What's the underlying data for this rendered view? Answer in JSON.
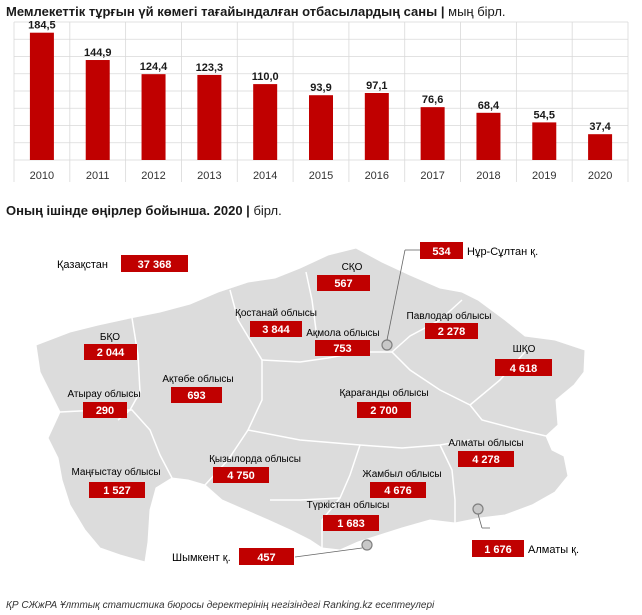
{
  "title1": {
    "main": "Мемлекеттік тұрғын үй көмегі тағайындалған отбасылардың саны",
    "sep": " | ",
    "unit": "мың бірл."
  },
  "title2": {
    "main": "Оның ішінде өңірлер бойынша. 2020",
    "sep": " | ",
    "unit": "бірл."
  },
  "colors": {
    "bar": "#c00000",
    "grid": "#d9d9d9",
    "map_fill": "#dcdcdc",
    "map_border": "#ffffff",
    "badge": "#c00000",
    "badge_text": "#ffffff"
  },
  "chart_data": [
    {
      "type": "bar",
      "title": "Мемлекеттік тұрғын үй көмегі тағайындалған отбасылардың саны",
      "unit": "мың бірл.",
      "categories": [
        "2010",
        "2011",
        "2012",
        "2013",
        "2014",
        "2015",
        "2016",
        "2017",
        "2018",
        "2019",
        "2020"
      ],
      "values": [
        184.5,
        144.9,
        124.4,
        123.3,
        110.0,
        93.9,
        97.1,
        76.6,
        68.4,
        54.5,
        37.4
      ],
      "labels": [
        "184,5",
        "144,9",
        "124,4",
        "123,3",
        "110,0",
        "93,9",
        "97,1",
        "76,6",
        "68,4",
        "54,5",
        "37,4"
      ],
      "ylim": [
        0,
        200
      ],
      "grid": true
    },
    {
      "type": "table",
      "title": "Оның ішінде өңірлер бойынша. 2020",
      "unit": "бірл.",
      "regions": [
        {
          "name": "Қазақстан",
          "value": "37 368"
        },
        {
          "name": "СҚО",
          "value": "567"
        },
        {
          "name": "Нұр-Сұлтан қ.",
          "value": "534"
        },
        {
          "name": "Қостанай облысы",
          "value": "3 844"
        },
        {
          "name": "Ақмола облысы",
          "value": "753"
        },
        {
          "name": "Павлодар облысы",
          "value": "2 278"
        },
        {
          "name": "БҚО",
          "value": "2 044"
        },
        {
          "name": "ШҚО",
          "value": "4 618"
        },
        {
          "name": "Ақтөбе облысы",
          "value": "693"
        },
        {
          "name": "Атырау облысы",
          "value": "290"
        },
        {
          "name": "Қарағанды облысы",
          "value": "2 700"
        },
        {
          "name": "Алматы облысы",
          "value": "4 278"
        },
        {
          "name": "Маңғыстау облысы",
          "value": "1 527"
        },
        {
          "name": "Қызылорда облысы",
          "value": "4 750"
        },
        {
          "name": "Жамбыл облысы",
          "value": "4 676"
        },
        {
          "name": "Түркістан облысы",
          "value": "1 683"
        },
        {
          "name": "Шымкент қ.",
          "value": "457"
        },
        {
          "name": "Алматы қ.",
          "value": "1 676"
        }
      ]
    }
  ],
  "footer": "ҚР СЖжРА Ұлттық статистика бюросы  деректерінің негізіндегі Ranking.kz есептеулері"
}
